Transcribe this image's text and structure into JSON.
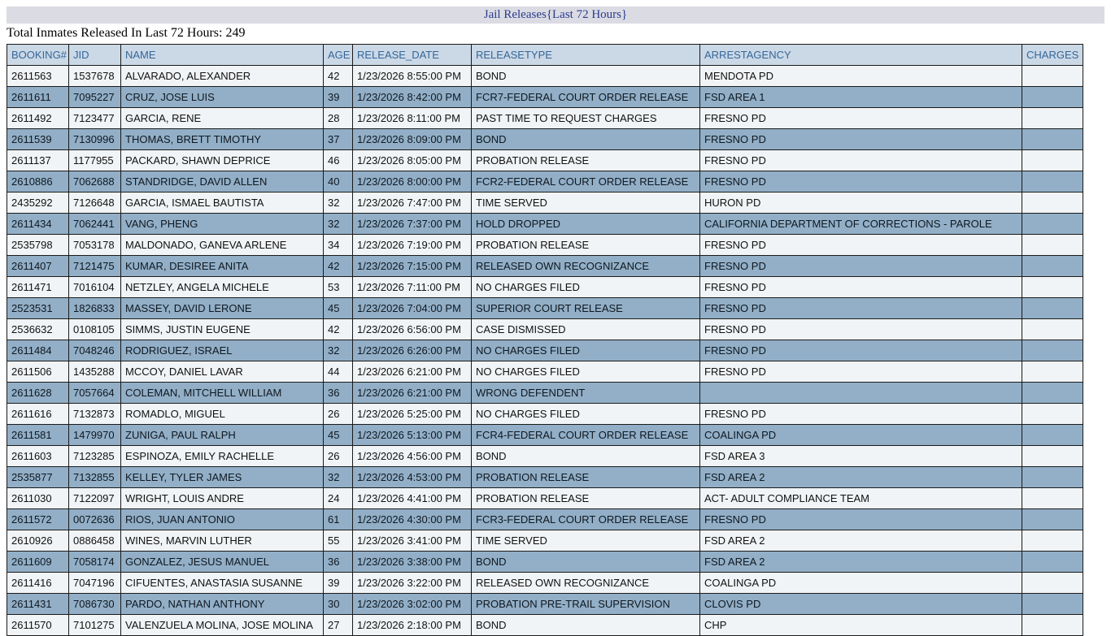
{
  "title_bar": {
    "title": "Jail Releases{Last 72 Hours}",
    "bg_color": "#dbdce3",
    "text_color": "#2b3a8c"
  },
  "summary": {
    "text": "Total Inmates Released In Last 72 Hours: 249",
    "total_released": 249
  },
  "table": {
    "columns": [
      "BOOKING#",
      "JID",
      "NAME",
      "AGE",
      "RELEASE_DATE",
      "RELEASETYPE",
      "ARRESTAGENCY",
      "CHARGES"
    ],
    "column_keys": [
      "booking",
      "jid",
      "name",
      "age",
      "release-date",
      "release-type",
      "arrest-agency",
      "charges"
    ],
    "colors": {
      "header_bg": "#cbd8e6",
      "header_text": "#34679a",
      "row_light": "#f1f4f6",
      "row_dark": "#92afc7",
      "border": "#1a1a1a"
    },
    "rows": [
      [
        "2611563",
        "1537678",
        "ALVARADO, ALEXANDER",
        "42",
        "1/23/2026 8:55:00 PM",
        "BOND",
        "MENDOTA PD",
        ""
      ],
      [
        "2611611",
        "7095227",
        "CRUZ, JOSE LUIS",
        "39",
        "1/23/2026 8:42:00 PM",
        "FCR7-FEDERAL COURT ORDER RELEASE",
        "FSD AREA 1",
        ""
      ],
      [
        "2611492",
        "7123477",
        "GARCIA, RENE",
        "28",
        "1/23/2026 8:11:00 PM",
        "PAST TIME TO REQUEST CHARGES",
        "FRESNO PD",
        ""
      ],
      [
        "2611539",
        "7130996",
        "THOMAS, BRETT TIMOTHY",
        "37",
        "1/23/2026 8:09:00 PM",
        "BOND",
        "FRESNO PD",
        ""
      ],
      [
        "2611137",
        "1177955",
        "PACKARD, SHAWN DEPRICE",
        "46",
        "1/23/2026 8:05:00 PM",
        "PROBATION RELEASE",
        "FRESNO PD",
        ""
      ],
      [
        "2610886",
        "7062688",
        "STANDRIDGE, DAVID ALLEN",
        "40",
        "1/23/2026 8:00:00 PM",
        "FCR2-FEDERAL COURT ORDER RELEASE",
        "FRESNO PD",
        ""
      ],
      [
        "2435292",
        "7126648",
        "GARCIA, ISMAEL BAUTISTA",
        "32",
        "1/23/2026 7:47:00 PM",
        "TIME SERVED",
        "HURON PD",
        ""
      ],
      [
        "2611434",
        "7062441",
        "VANG, PHENG",
        "32",
        "1/23/2026 7:37:00 PM",
        "HOLD DROPPED",
        "CALIFORNIA DEPARTMENT OF CORRECTIONS - PAROLE",
        ""
      ],
      [
        "2535798",
        "7053178",
        "MALDONADO, GANEVA ARLENE",
        "34",
        "1/23/2026 7:19:00 PM",
        "PROBATION RELEASE",
        "FRESNO PD",
        ""
      ],
      [
        "2611407",
        "7121475",
        "KUMAR, DESIREE ANITA",
        "42",
        "1/23/2026 7:15:00 PM",
        "RELEASED OWN RECOGNIZANCE",
        "FRESNO PD",
        ""
      ],
      [
        "2611471",
        "7016104",
        "NETZLEY, ANGELA MICHELE",
        "53",
        "1/23/2026 7:11:00 PM",
        "NO CHARGES FILED",
        "FRESNO PD",
        ""
      ],
      [
        "2523531",
        "1826833",
        "MASSEY, DAVID LERONE",
        "45",
        "1/23/2026 7:04:00 PM",
        "SUPERIOR COURT RELEASE",
        "FRESNO PD",
        ""
      ],
      [
        "2536632",
        "0108105",
        "SIMMS, JUSTIN EUGENE",
        "42",
        "1/23/2026 6:56:00 PM",
        "CASE DISMISSED",
        "FRESNO PD",
        ""
      ],
      [
        "2611484",
        "7048246",
        "RODRIGUEZ, ISRAEL",
        "32",
        "1/23/2026 6:26:00 PM",
        "NO CHARGES FILED",
        "FRESNO PD",
        ""
      ],
      [
        "2611506",
        "1435288",
        "MCCOY, DANIEL LAVAR",
        "44",
        "1/23/2026 6:21:00 PM",
        "NO CHARGES FILED",
        "FRESNO PD",
        ""
      ],
      [
        "2611628",
        "7057664",
        "COLEMAN, MITCHELL WILLIAM",
        "36",
        "1/23/2026 6:21:00 PM",
        "WRONG DEFENDENT",
        "",
        ""
      ],
      [
        "2611616",
        "7132873",
        "ROMADLO, MIGUEL",
        "26",
        "1/23/2026 5:25:00 PM",
        "NO CHARGES FILED",
        "FRESNO PD",
        ""
      ],
      [
        "2611581",
        "1479970",
        "ZUNIGA, PAUL RALPH",
        "45",
        "1/23/2026 5:13:00 PM",
        "FCR4-FEDERAL COURT ORDER RELEASE",
        "COALINGA PD",
        ""
      ],
      [
        "2611603",
        "7123285",
        "ESPINOZA, EMILY RACHELLE",
        "26",
        "1/23/2026 4:56:00 PM",
        "BOND",
        "FSD AREA 3",
        ""
      ],
      [
        "2535877",
        "7132855",
        "KELLEY, TYLER JAMES",
        "32",
        "1/23/2026 4:53:00 PM",
        "PROBATION RELEASE",
        "FSD AREA 2",
        ""
      ],
      [
        "2611030",
        "7122097",
        "WRIGHT, LOUIS ANDRE",
        "24",
        "1/23/2026 4:41:00 PM",
        "PROBATION RELEASE",
        "ACT- ADULT COMPLIANCE TEAM",
        ""
      ],
      [
        "2611572",
        "0072636",
        "RIOS, JUAN ANTONIO",
        "61",
        "1/23/2026 4:30:00 PM",
        "FCR3-FEDERAL COURT ORDER RELEASE",
        "FRESNO PD",
        ""
      ],
      [
        "2610926",
        "0886458",
        "WINES, MARVIN LUTHER",
        "55",
        "1/23/2026 3:41:00 PM",
        "TIME SERVED",
        "FSD AREA 2",
        ""
      ],
      [
        "2611609",
        "7058174",
        "GONZALEZ, JESUS MANUEL",
        "36",
        "1/23/2026 3:38:00 PM",
        "BOND",
        "FSD AREA 2",
        ""
      ],
      [
        "2611416",
        "7047196",
        "CIFUENTES, ANASTASIA SUSANNE",
        "39",
        "1/23/2026 3:22:00 PM",
        "RELEASED OWN RECOGNIZANCE",
        "COALINGA PD",
        ""
      ],
      [
        "2611431",
        "7086730",
        "PARDO, NATHAN ANTHONY",
        "30",
        "1/23/2026 3:02:00 PM",
        "PROBATION PRE-TRAIL SUPERVISION",
        "CLOVIS PD",
        ""
      ],
      [
        "2611570",
        "7101275",
        "VALENZUELA MOLINA, JOSE MOLINA",
        "27",
        "1/23/2026 2:18:00 PM",
        "BOND",
        "CHP",
        ""
      ]
    ]
  }
}
